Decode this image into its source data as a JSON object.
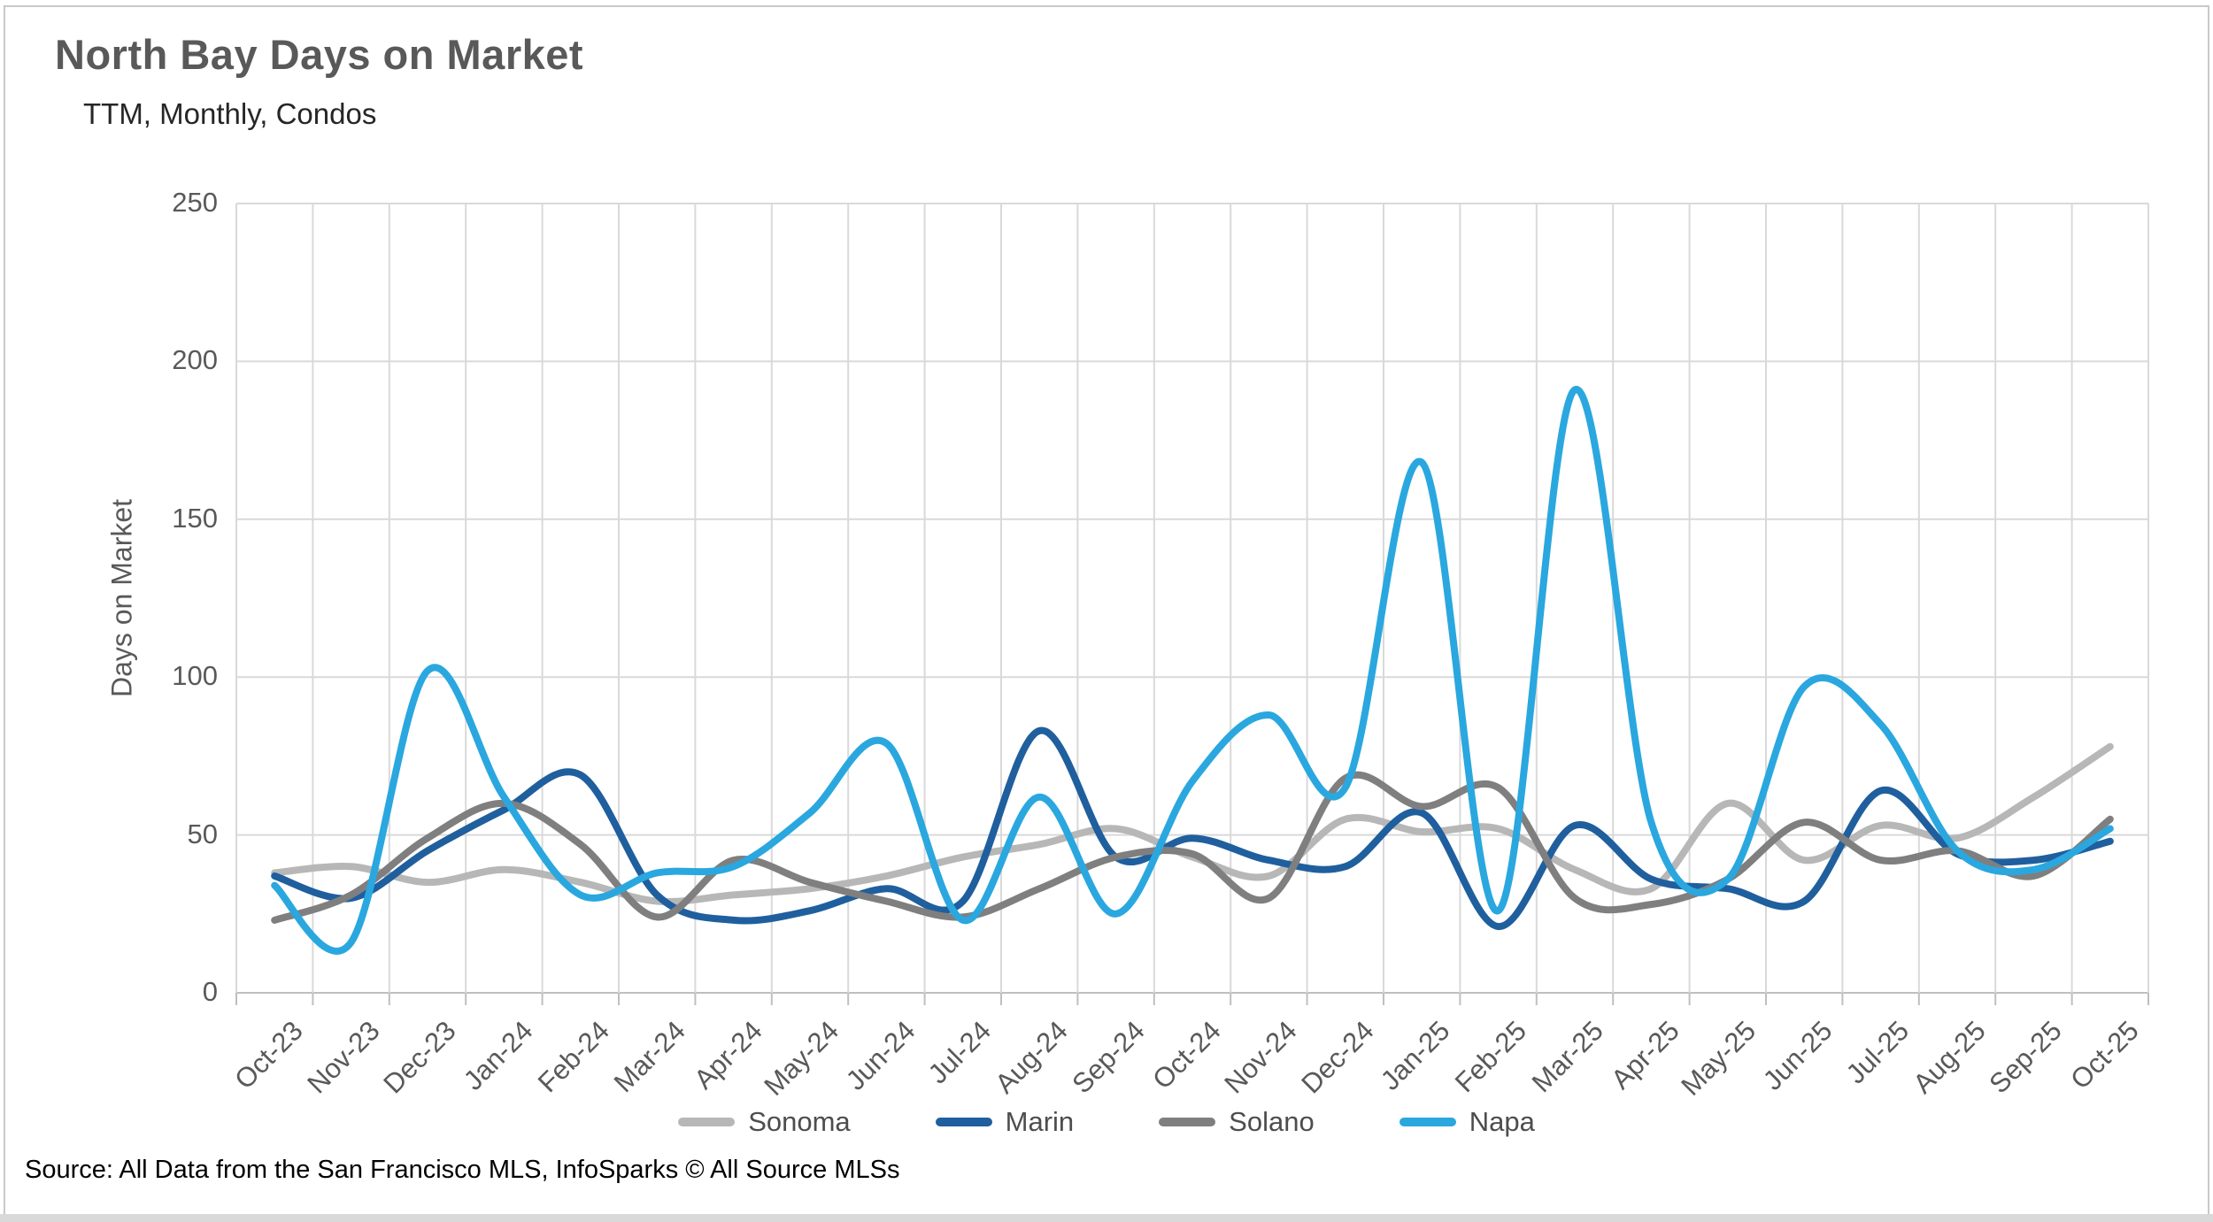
{
  "header": {
    "title": "North Bay Days on Market",
    "subtitle": "TTM, Monthly, Condos"
  },
  "source": "Source: All Data from the San Francisco MLS, InfoSparks © All Source MLSs",
  "colors": {
    "title_text": "#595959",
    "axis_text": "#595959",
    "gridline": "#d9d9d9",
    "axis_line": "#bfbfbf",
    "border": "#c9c9c9",
    "bottom_strip": "#d9d9d9"
  },
  "chart_data": {
    "type": "line",
    "title": "North Bay Days on Market",
    "subtitle": "TTM, Monthly, Condos",
    "xlabel": "",
    "ylabel": "Days on Market",
    "ylim": [
      0,
      250
    ],
    "ytick_interval": 50,
    "yticks": [
      "0",
      "50",
      "100",
      "150",
      "200",
      "250"
    ],
    "grid": true,
    "smooth": true,
    "legend_position": "bottom",
    "categories": [
      "Oct-23",
      "Nov-23",
      "Dec-23",
      "Jan-24",
      "Feb-24",
      "Mar-24",
      "Apr-24",
      "May-24",
      "Jun-24",
      "Jul-24",
      "Aug-24",
      "Sep-24",
      "Oct-24",
      "Nov-24",
      "Dec-24",
      "Jan-25",
      "Feb-25",
      "Mar-25",
      "Apr-25",
      "May-25",
      "Jun-25",
      "Jul-25",
      "Aug-25",
      "Sep-25",
      "Oct-25"
    ],
    "series": [
      {
        "name": "Sonoma",
        "color": "#b7b7b7",
        "values": [
          38,
          40,
          35,
          39,
          35,
          29,
          31,
          33,
          37,
          43,
          47,
          52,
          43,
          37,
          55,
          51,
          52,
          39,
          33,
          60,
          42,
          53,
          49,
          62,
          78
        ]
      },
      {
        "name": "Marin",
        "color": "#1f5f9e",
        "values": [
          37,
          30,
          45,
          58,
          69,
          31,
          23,
          26,
          33,
          29,
          83,
          43,
          49,
          42,
          40,
          57,
          21,
          53,
          36,
          33,
          29,
          64,
          44,
          42,
          48
        ]
      },
      {
        "name": "Solano",
        "color": "#7f7f7f",
        "values": [
          23,
          31,
          49,
          60,
          47,
          24,
          42,
          35,
          29,
          24,
          33,
          43,
          44,
          30,
          68,
          59,
          65,
          30,
          28,
          36,
          54,
          42,
          45,
          37,
          55
        ]
      },
      {
        "name": "Napa",
        "color": "#2aa7df",
        "values": [
          34,
          16,
          102,
          62,
          31,
          38,
          40,
          57,
          79,
          23,
          62,
          25,
          67,
          88,
          65,
          168,
          26,
          191,
          54,
          36,
          97,
          85,
          45,
          39,
          52
        ]
      }
    ]
  }
}
